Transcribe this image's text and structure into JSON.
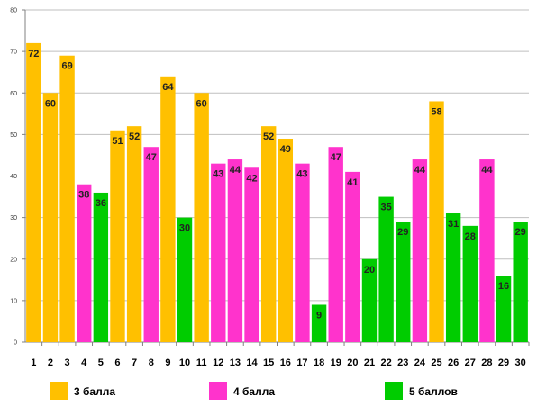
{
  "chart_data": {
    "type": "bar",
    "categories": [
      "1",
      "2",
      "3",
      "4",
      "5",
      "6",
      "7",
      "8",
      "9",
      "10",
      "11",
      "12",
      "13",
      "14",
      "15",
      "16",
      "17",
      "18",
      "19",
      "20",
      "21",
      "22",
      "23",
      "24",
      "25",
      "26",
      "27",
      "28",
      "29",
      "30"
    ],
    "values": [
      72,
      60,
      69,
      38,
      36,
      51,
      52,
      47,
      64,
      30,
      60,
      43,
      44,
      42,
      52,
      49,
      43,
      9,
      47,
      41,
      20,
      35,
      29,
      44,
      58,
      31,
      28,
      44,
      16,
      29
    ],
    "series_index": [
      0,
      0,
      0,
      1,
      2,
      0,
      0,
      1,
      0,
      2,
      0,
      1,
      1,
      1,
      0,
      0,
      1,
      2,
      1,
      1,
      2,
      2,
      2,
      1,
      0,
      2,
      2,
      1,
      2,
      2
    ],
    "series": [
      {
        "name": "3 балла",
        "color": "#FFC000"
      },
      {
        "name": "4 балла",
        "color": "#FF33CC"
      },
      {
        "name": "5 баллов",
        "color": "#00CC00"
      }
    ],
    "ylim": [
      0,
      80
    ],
    "yticks": [
      "0",
      "10",
      "20",
      "30",
      "40",
      "50",
      "60",
      "70",
      "80"
    ],
    "grid": true,
    "legend_position": "bottom"
  }
}
